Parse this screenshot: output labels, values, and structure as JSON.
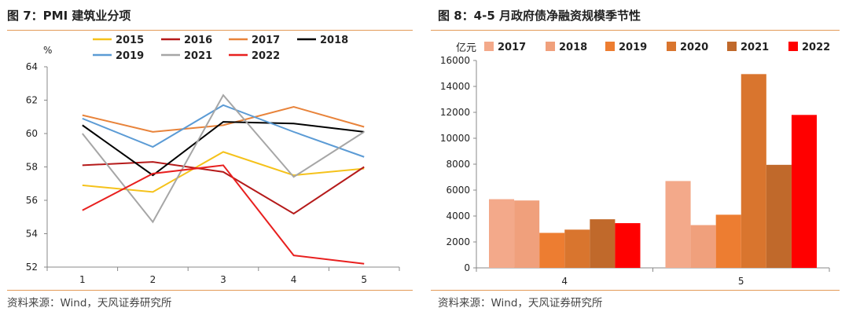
{
  "figures": [
    {
      "title": "图 7：PMI 建筑业分项",
      "source": "资料来源：Wind，天风证券研究所",
      "chart_data": {
        "type": "line",
        "ylabel": "%",
        "xlabel": "",
        "categories": [
          "1",
          "2",
          "3",
          "4",
          "5"
        ],
        "ylim": [
          52,
          64
        ],
        "yticks": [
          52,
          54,
          56,
          58,
          60,
          62,
          64
        ],
        "grid": false,
        "legend": "top",
        "series": [
          {
            "name": "2015",
            "color": "#f5c21b",
            "values": [
              56.9,
              56.5,
              58.9,
              57.5,
              57.9
            ]
          },
          {
            "name": "2016",
            "color": "#b51a1a",
            "values": [
              58.1,
              58.3,
              57.7,
              55.2,
              58.0
            ]
          },
          {
            "name": "2017",
            "color": "#e8833a",
            "values": [
              61.1,
              60.1,
              60.5,
              61.6,
              60.4
            ]
          },
          {
            "name": "2018",
            "color": "#000000",
            "values": [
              60.5,
              57.5,
              60.7,
              60.6,
              60.1
            ]
          },
          {
            "name": "2019",
            "color": "#5b9bd5",
            "values": [
              60.9,
              59.2,
              61.7,
              60.1,
              58.6
            ]
          },
          {
            "name": "2021",
            "color": "#a6a6a6",
            "values": [
              60.0,
              54.7,
              62.3,
              57.4,
              60.1
            ]
          },
          {
            "name": "2022",
            "color": "#e8201f",
            "values": [
              55.4,
              57.6,
              58.1,
              52.7,
              52.2
            ]
          }
        ]
      }
    },
    {
      "title": "图 8：4-5 月政府债净融资规模季节性",
      "source": "资料来源：Wind，天风证券研究所",
      "chart_data": {
        "type": "bar",
        "ylabel": "亿元",
        "xlabel": "",
        "categories": [
          "4",
          "5"
        ],
        "ylim": [
          0,
          16000
        ],
        "yticks": [
          0,
          2000,
          4000,
          6000,
          8000,
          10000,
          12000,
          14000,
          16000
        ],
        "grid": false,
        "legend": "top",
        "series": [
          {
            "name": "2017",
            "color": "#f3a98a",
            "values": [
              5300,
              6700
            ]
          },
          {
            "name": "2018",
            "color": "#f0a07c",
            "values": [
              5200,
              3300
            ]
          },
          {
            "name": "2019",
            "color": "#ed7d31",
            "values": [
              2700,
              4100
            ]
          },
          {
            "name": "2020",
            "color": "#d9752e",
            "values": [
              2950,
              14950
            ]
          },
          {
            "name": "2021",
            "color": "#c0692b",
            "values": [
              3750,
              7950
            ]
          },
          {
            "name": "2022",
            "color": "#ff0000",
            "values": [
              3450,
              11800
            ]
          }
        ]
      }
    }
  ]
}
